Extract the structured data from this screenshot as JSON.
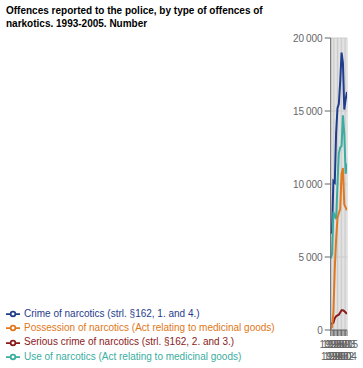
{
  "chart_data": {
    "type": "line",
    "title": "Offences reported to the police, by type of offences of",
    "subtitle": "narkotics. 1993-2005. Number",
    "x": [
      1993,
      1994,
      1995,
      1996,
      1997,
      1998,
      1999,
      2000,
      2001,
      2002,
      2003,
      2004,
      2005
    ],
    "series": [
      {
        "name": "Crime of narcotics (strl. §162, 1. and 4.)",
        "color": "#1f3d8c",
        "values": [
          6600,
          6900,
          10200,
          10100,
          13500,
          15200,
          15500,
          17000,
          19000,
          18300,
          15100,
          15800,
          16300
        ]
      },
      {
        "name": "Use of narcotics (Act relating to medicinal goods)",
        "color": "#3aada0",
        "values": [
          4900,
          5200,
          8100,
          7800,
          7600,
          10000,
          12100,
          12500,
          12600,
          14700,
          13400,
          10700,
          11400
        ]
      },
      {
        "name": "Serious crime of narcotics  (strl. §162, 2. and 3.)",
        "color": "#8b1a1a",
        "values": [
          400,
          450,
          500,
          800,
          950,
          1000,
          1050,
          1200,
          1350,
          1350,
          1300,
          1200,
          1100
        ]
      },
      {
        "name": "Possession of narcotics (Act relating to medicinal goods)",
        "color": "#e07820",
        "values": [
          100,
          200,
          1200,
          4200,
          6200,
          7700,
          8000,
          8300,
          10700,
          11100,
          8600,
          8400,
          8200
        ]
      }
    ],
    "xlim": [
      1993,
      2005
    ],
    "xticks": [
      1993,
      1994,
      1995,
      1996,
      1997,
      1998,
      1999,
      2000,
      2001,
      2002,
      2003,
      2004,
      2005
    ],
    "ylim": [
      0,
      20000
    ],
    "yticks": [
      0,
      {
        "value": 5000,
        "label": "5 000"
      },
      {
        "value": 10000,
        "label": "10 000"
      },
      {
        "value": 15000,
        "label": "15 000"
      },
      {
        "value": 20000,
        "label": "20 000"
      }
    ],
    "grid": true
  }
}
